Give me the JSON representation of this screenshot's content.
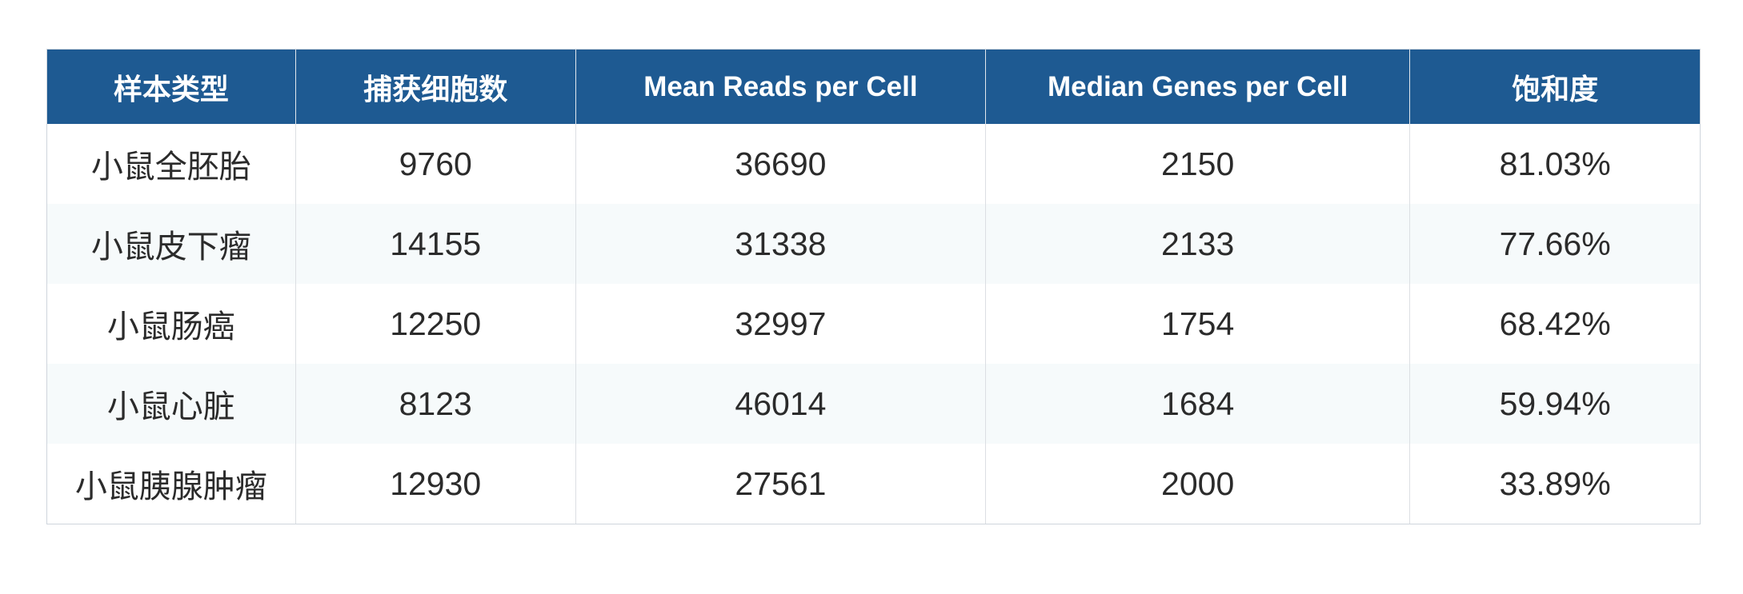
{
  "table": {
    "headers": [
      "样本类型",
      "捕获细胞数",
      "Mean Reads per Cell",
      "Median Genes per Cell",
      "饱和度"
    ],
    "rows": [
      [
        "小鼠全胚胎",
        "9760",
        "36690",
        "2150",
        "81.03%"
      ],
      [
        "小鼠皮下瘤",
        "14155",
        "31338",
        "2133",
        "77.66%"
      ],
      [
        "小鼠肠癌",
        "12250",
        "32997",
        "1754",
        "68.42%"
      ],
      [
        "小鼠心脏",
        "8123",
        "46014",
        "1684",
        "59.94%"
      ],
      [
        "小鼠胰腺肿瘤",
        "12930",
        "27561",
        "2000",
        "33.89%"
      ]
    ]
  },
  "colors": {
    "header_bg": "#1e5a92",
    "header_text": "#ffffff",
    "alt_row_bg": "#f6fafb",
    "border": "#cfd5dc"
  }
}
